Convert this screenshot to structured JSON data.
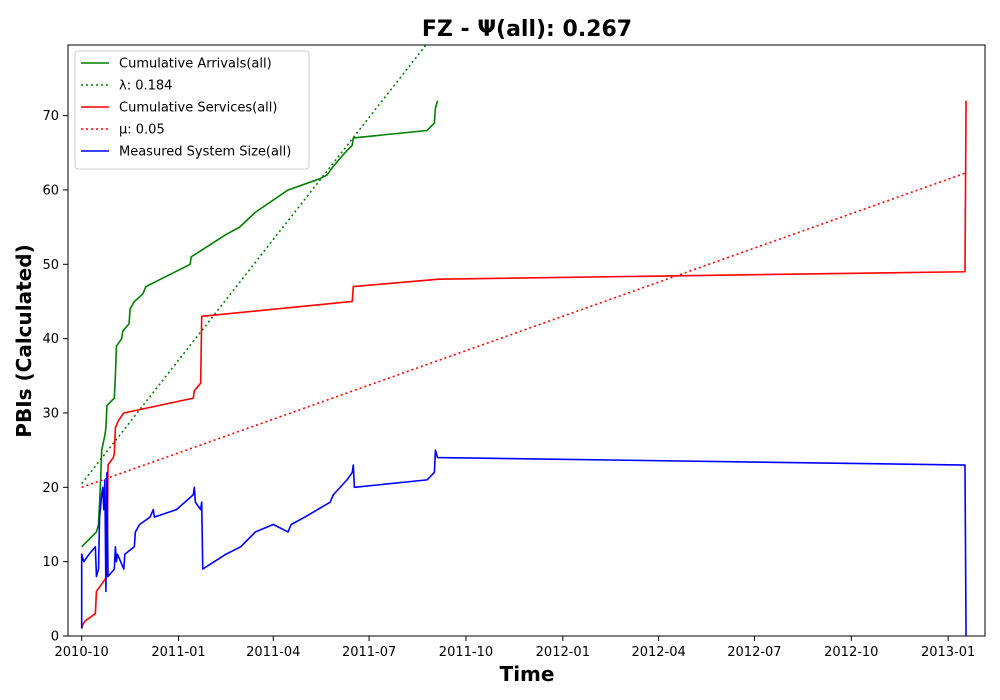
{
  "chart_data": {
    "type": "line",
    "title": "FZ -  Ψ(all): 0.267",
    "xlabel": "Time",
    "ylabel": "PBIs (Calculated)",
    "xlim": [
      "2010-09-18",
      "2013-02-05"
    ],
    "ylim": [
      0,
      79.5
    ],
    "x_ticks": [
      "2010-10-01",
      "2011-01-01",
      "2011-04-01",
      "2011-07-01",
      "2011-10-01",
      "2012-01-01",
      "2012-04-01",
      "2012-07-01",
      "2012-10-01",
      "2013-01-01"
    ],
    "x_tick_labels": [
      "2010-10",
      "2011-01",
      "2011-04",
      "2011-07",
      "2011-10",
      "2012-01",
      "2012-04",
      "2012-07",
      "2012-10",
      "2013-01"
    ],
    "y_ticks": [
      0,
      10,
      20,
      30,
      40,
      50,
      60,
      70
    ],
    "legend_position": "upper-left",
    "series": [
      {
        "name": "Cumulative Arrivals(all)",
        "color": "#008000",
        "style": "solid",
        "points": [
          [
            "2010-10-01",
            12
          ],
          [
            "2010-10-15",
            14
          ],
          [
            "2010-10-17",
            15
          ],
          [
            "2010-10-19",
            21
          ],
          [
            "2010-10-20",
            25
          ],
          [
            "2010-10-23",
            27
          ],
          [
            "2010-10-24",
            28
          ],
          [
            "2010-10-25",
            31
          ],
          [
            "2010-11-01",
            32
          ],
          [
            "2010-11-02",
            35
          ],
          [
            "2010-11-03",
            39
          ],
          [
            "2010-11-08",
            40
          ],
          [
            "2010-11-09",
            41
          ],
          [
            "2010-11-15",
            42
          ],
          [
            "2010-11-16",
            44
          ],
          [
            "2010-11-20",
            45
          ],
          [
            "2010-11-28",
            46
          ],
          [
            "2010-12-01",
            47
          ],
          [
            "2010-12-15",
            48
          ],
          [
            "2011-01-12",
            50
          ],
          [
            "2011-01-13",
            51
          ],
          [
            "2011-02-15",
            54
          ],
          [
            "2011-02-28",
            55
          ],
          [
            "2011-03-15",
            57
          ],
          [
            "2011-04-15",
            60
          ],
          [
            "2011-05-15",
            61.5
          ],
          [
            "2011-05-22",
            62
          ],
          [
            "2011-05-27",
            63
          ],
          [
            "2011-06-08",
            65
          ],
          [
            "2011-06-15",
            66
          ],
          [
            "2011-06-16",
            67
          ],
          [
            "2011-08-25",
            68
          ],
          [
            "2011-09-01",
            69
          ],
          [
            "2011-09-02",
            71
          ],
          [
            "2011-09-04",
            72
          ]
        ]
      },
      {
        "name": "λ: 0.184",
        "color": "#008000",
        "style": "dotted",
        "points": [
          [
            "2010-10-01",
            20.5
          ],
          [
            "2011-08-24",
            79.5
          ]
        ]
      },
      {
        "name": "Cumulative Services(all)",
        "color": "#ff0000",
        "style": "solid",
        "points": [
          [
            "2010-10-01",
            1
          ],
          [
            "2010-10-02",
            1.5
          ],
          [
            "2010-10-04",
            2
          ],
          [
            "2010-10-14",
            3
          ],
          [
            "2010-10-15",
            6
          ],
          [
            "2010-10-25",
            8
          ],
          [
            "2010-10-26",
            23
          ],
          [
            "2010-10-31",
            24
          ],
          [
            "2010-11-01",
            24.5
          ],
          [
            "2010-11-02",
            28
          ],
          [
            "2010-11-05",
            29
          ],
          [
            "2010-11-10",
            30
          ],
          [
            "2011-01-15",
            32
          ],
          [
            "2011-01-16",
            33
          ],
          [
            "2011-01-22",
            34
          ],
          [
            "2011-01-23",
            43
          ],
          [
            "2011-06-15",
            45
          ],
          [
            "2011-06-16",
            47
          ],
          [
            "2011-09-05",
            48
          ],
          [
            "2013-01-17",
            49
          ],
          [
            "2013-01-18",
            72
          ]
        ]
      },
      {
        "name": "μ: 0.05",
        "color": "#ff0000",
        "style": "dotted",
        "points": [
          [
            "2010-10-01",
            20
          ],
          [
            "2013-01-18",
            62.3
          ]
        ]
      },
      {
        "name": "Measured System Size(all)",
        "color": "#0000ff",
        "style": "solid",
        "points": [
          [
            "2010-10-01",
            1
          ],
          [
            "2010-10-01",
            11
          ],
          [
            "2010-10-03",
            10
          ],
          [
            "2010-10-08",
            11
          ],
          [
            "2010-10-14",
            12
          ],
          [
            "2010-10-15",
            8
          ],
          [
            "2010-10-17",
            9
          ],
          [
            "2010-10-18",
            16
          ],
          [
            "2010-10-20",
            19
          ],
          [
            "2010-10-21",
            20
          ],
          [
            "2010-10-22",
            17
          ],
          [
            "2010-10-23",
            21
          ],
          [
            "2010-10-24",
            6
          ],
          [
            "2010-10-25",
            22
          ],
          [
            "2010-10-26",
            8
          ],
          [
            "2010-11-01",
            9
          ],
          [
            "2010-11-02",
            12
          ],
          [
            "2010-11-03",
            10
          ],
          [
            "2010-11-04",
            11
          ],
          [
            "2010-11-10",
            9
          ],
          [
            "2010-11-11",
            11
          ],
          [
            "2010-11-20",
            12
          ],
          [
            "2010-11-21",
            14
          ],
          [
            "2010-11-25",
            15
          ],
          [
            "2010-12-05",
            16
          ],
          [
            "2010-12-08",
            17
          ],
          [
            "2010-12-09",
            16
          ],
          [
            "2010-12-30",
            17
          ],
          [
            "2011-01-15",
            19
          ],
          [
            "2011-01-16",
            20
          ],
          [
            "2011-01-17",
            18
          ],
          [
            "2011-01-22",
            17
          ],
          [
            "2011-01-23",
            18
          ],
          [
            "2011-01-24",
            9
          ],
          [
            "2011-02-15",
            11
          ],
          [
            "2011-03-01",
            12
          ],
          [
            "2011-03-15",
            14
          ],
          [
            "2011-04-01",
            15
          ],
          [
            "2011-04-15",
            14
          ],
          [
            "2011-04-18",
            15
          ],
          [
            "2011-05-01",
            16
          ],
          [
            "2011-05-25",
            18
          ],
          [
            "2011-05-28",
            19
          ],
          [
            "2011-06-10",
            21
          ],
          [
            "2011-06-15",
            22
          ],
          [
            "2011-06-16",
            23
          ],
          [
            "2011-06-17",
            20
          ],
          [
            "2011-08-25",
            21
          ],
          [
            "2011-09-01",
            22
          ],
          [
            "2011-09-02",
            25
          ],
          [
            "2011-09-04",
            24
          ],
          [
            "2013-01-17",
            23
          ],
          [
            "2013-01-18",
            0
          ]
        ]
      }
    ]
  }
}
